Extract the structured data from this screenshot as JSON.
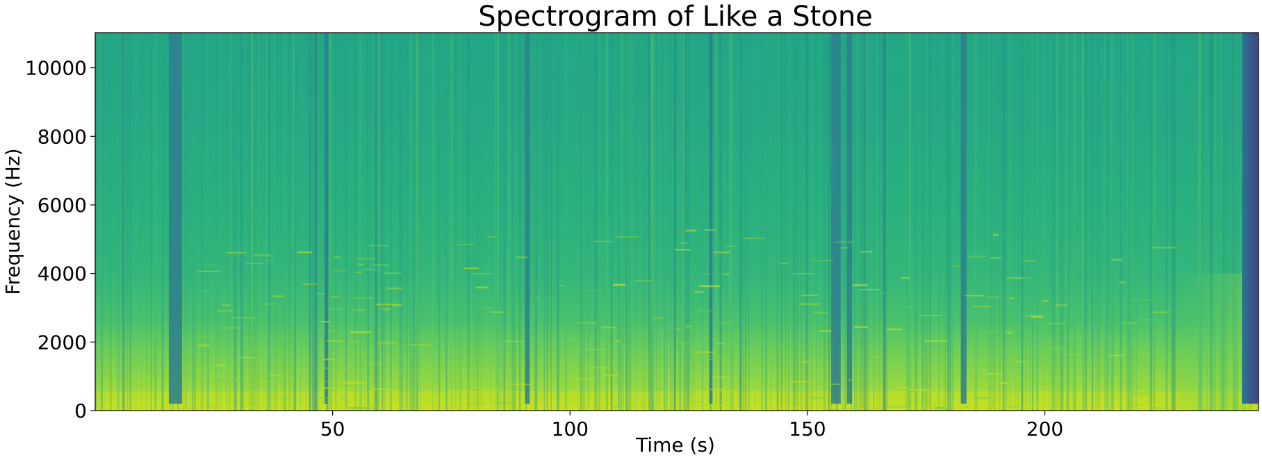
{
  "chart_data": {
    "type": "heatmap",
    "title": "Spectrogram of Like a Stone",
    "xlabel": "Time (s)",
    "ylabel": "Frequency (Hz)",
    "xlim": [
      0,
      245
    ],
    "ylim": [
      0,
      11025
    ],
    "xticks": [
      50,
      100,
      150,
      200
    ],
    "xtick_labels": [
      "50",
      "100",
      "150",
      "200"
    ],
    "yticks": [
      0,
      2000,
      4000,
      6000,
      8000,
      10000
    ],
    "ytick_labels": [
      "0",
      "2000",
      "4000",
      "6000",
      "8000",
      "10000"
    ],
    "grid": false,
    "colormap": "viridis",
    "colors": {
      "quiet_band": "#2f7e8e",
      "mid": "#26a884",
      "loud_low": "#c9e020"
    },
    "quiet_segments_s": [
      [
        15.5,
        18.3
      ],
      [
        48.3,
        49.0
      ],
      [
        90.5,
        91.5
      ],
      [
        129.3,
        130.0
      ],
      [
        155.0,
        157.0
      ],
      [
        158.3,
        159.4
      ],
      [
        182.3,
        183.5
      ],
      [
        241.5,
        245
      ]
    ],
    "fade_out_start_s": 225
  }
}
